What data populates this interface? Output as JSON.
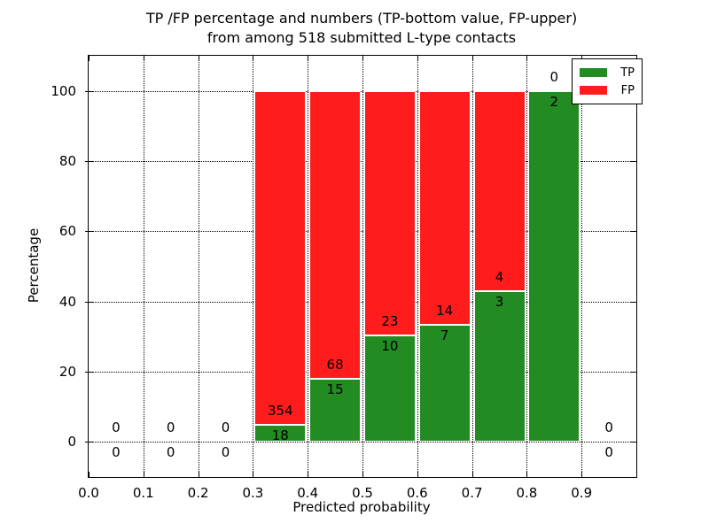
{
  "colors": {
    "tp": "#228B22",
    "fp": "#FF1C1C",
    "grid": "#000000",
    "background": "#FFFFFF",
    "text": "#000000"
  },
  "chart_data": {
    "type": "bar",
    "variant": "stacked-percentage",
    "title": "TP /FP percentage and numbers (TP-bottom value, FP-upper)\nfrom among 518 submitted L-type contacts",
    "title_lines": [
      "TP /FP percentage and numbers (TP-bottom value, FP-upper)",
      "from among 518 submitted L-type contacts"
    ],
    "total_contacts": 518,
    "xlabel": "Predicted probability",
    "ylabel": "Percentage",
    "xlim": [
      0.0,
      1.0
    ],
    "ylim": [
      -10,
      110
    ],
    "xticks": [
      "0.0",
      "0.1",
      "0.2",
      "0.3",
      "0.4",
      "0.5",
      "0.6",
      "0.7",
      "0.8",
      "0.9"
    ],
    "yticks": [
      0,
      20,
      40,
      60,
      80,
      100
    ],
    "grid": "dotted",
    "legend": {
      "position": "upper right",
      "entries": [
        {
          "label": "TP",
          "series": "tp"
        },
        {
          "label": "FP",
          "series": "fp"
        }
      ]
    },
    "bins": [
      {
        "range": [
          0.0,
          0.1
        ],
        "center": 0.05,
        "tp": 0,
        "fp": 0,
        "tp_pct": 0,
        "fp_pct": 0
      },
      {
        "range": [
          0.1,
          0.2
        ],
        "center": 0.15,
        "tp": 0,
        "fp": 0,
        "tp_pct": 0,
        "fp_pct": 0
      },
      {
        "range": [
          0.2,
          0.3
        ],
        "center": 0.25,
        "tp": 0,
        "fp": 0,
        "tp_pct": 0,
        "fp_pct": 0
      },
      {
        "range": [
          0.3,
          0.4
        ],
        "center": 0.35,
        "tp": 18,
        "fp": 354,
        "tp_pct": 4.84,
        "fp_pct": 95.16
      },
      {
        "range": [
          0.4,
          0.5
        ],
        "center": 0.45,
        "tp": 15,
        "fp": 68,
        "tp_pct": 18.07,
        "fp_pct": 81.93
      },
      {
        "range": [
          0.5,
          0.6
        ],
        "center": 0.55,
        "tp": 10,
        "fp": 23,
        "tp_pct": 30.3,
        "fp_pct": 69.7
      },
      {
        "range": [
          0.6,
          0.7
        ],
        "center": 0.65,
        "tp": 7,
        "fp": 14,
        "tp_pct": 33.33,
        "fp_pct": 66.67
      },
      {
        "range": [
          0.7,
          0.8
        ],
        "center": 0.75,
        "tp": 3,
        "fp": 4,
        "tp_pct": 42.86,
        "fp_pct": 57.14
      },
      {
        "range": [
          0.8,
          0.9
        ],
        "center": 0.85,
        "tp": 2,
        "fp": 0,
        "tp_pct": 100,
        "fp_pct": 0
      },
      {
        "range": [
          0.9,
          1.0
        ],
        "center": 0.95,
        "tp": 0,
        "fp": 0,
        "tp_pct": 0,
        "fp_pct": 0
      }
    ]
  }
}
